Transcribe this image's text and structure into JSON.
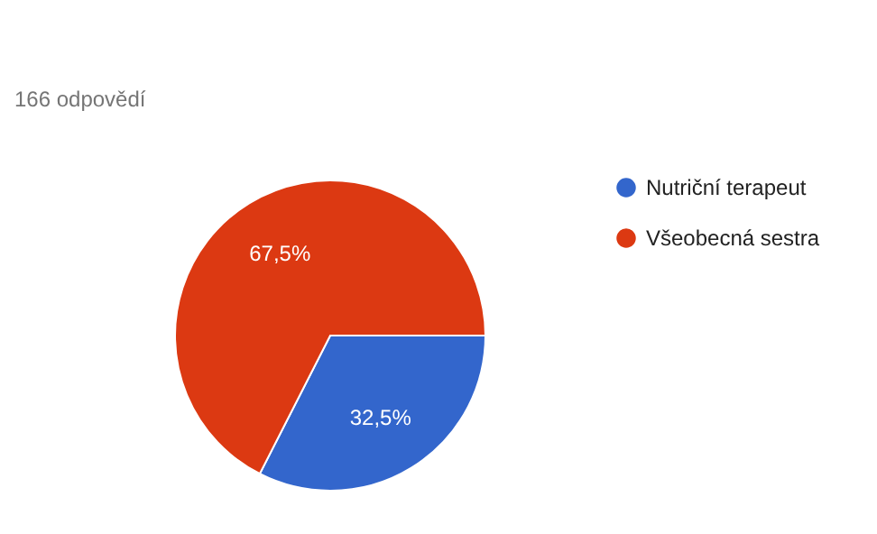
{
  "chart_data": {
    "type": "pie",
    "subtitle": "166 odpovědí",
    "categories": [
      "Nutriční terapeut",
      "Všeobecná sestra"
    ],
    "values": [
      32.5,
      67.5
    ],
    "colors": [
      "#3366cc",
      "#dc3912"
    ],
    "value_labels": [
      "32,5%",
      "67,5%"
    ],
    "legend": "right"
  }
}
